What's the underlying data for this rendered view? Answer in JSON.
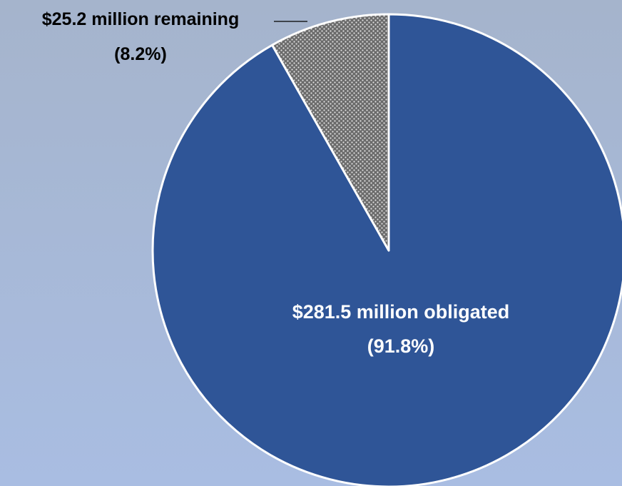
{
  "chart_data": {
    "type": "pie",
    "title": "",
    "slices": [
      {
        "label": "$281.5 million obligated",
        "value": 281.5,
        "percent_label": "(91.8%)",
        "color": "#2f5597"
      },
      {
        "label": "$25.2 million remaining",
        "value": 25.2,
        "percent_label": "(8.2%)",
        "color": "#7f7f7f",
        "pattern": "dotted"
      }
    ],
    "legend": "none"
  }
}
